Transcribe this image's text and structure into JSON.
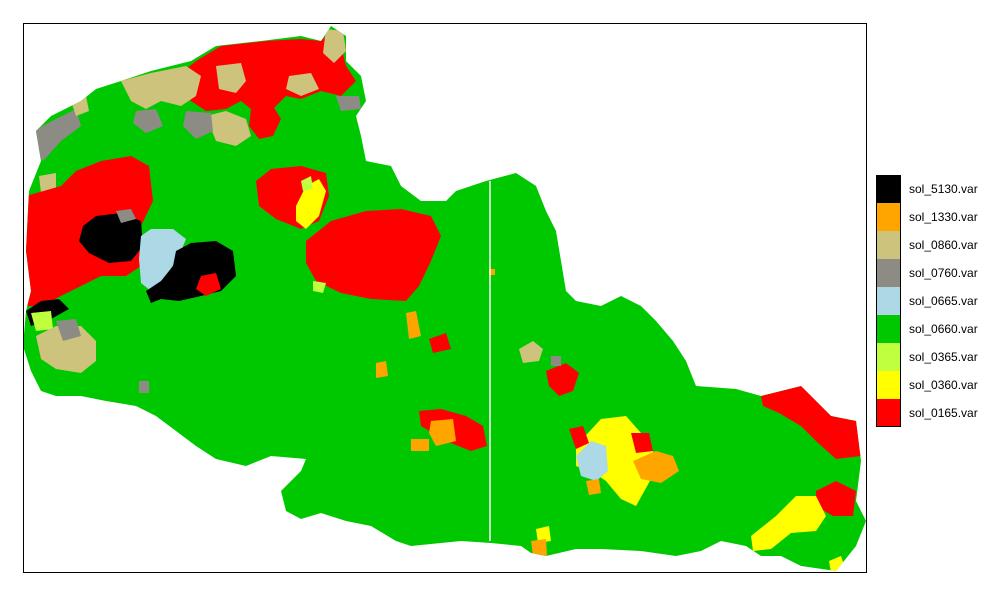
{
  "colors": {
    "background": "#ffffff",
    "frame": "#000000",
    "divider_line": "#ffffff"
  },
  "map": {
    "type": "categorical-raster",
    "region_shape": "north-west administrative region"
  },
  "legend": {
    "placement": "right",
    "items": [
      {
        "label": "sol_5130.var",
        "color": "#000000"
      },
      {
        "label": "sol_1330.var",
        "color": "#ffa500"
      },
      {
        "label": "sol_0860.var",
        "color": "#cdc37c"
      },
      {
        "label": "sol_0760.var",
        "color": "#8c8c84"
      },
      {
        "label": "sol_0665.var",
        "color": "#add8e6"
      },
      {
        "label": "sol_0660.var",
        "color": "#00c800"
      },
      {
        "label": "sol_0365.var",
        "color": "#c0ff3e"
      },
      {
        "label": "sol_0360.var",
        "color": "#ffff00"
      },
      {
        "label": "sol_0165.var",
        "color": "#ff0000"
      }
    ]
  }
}
